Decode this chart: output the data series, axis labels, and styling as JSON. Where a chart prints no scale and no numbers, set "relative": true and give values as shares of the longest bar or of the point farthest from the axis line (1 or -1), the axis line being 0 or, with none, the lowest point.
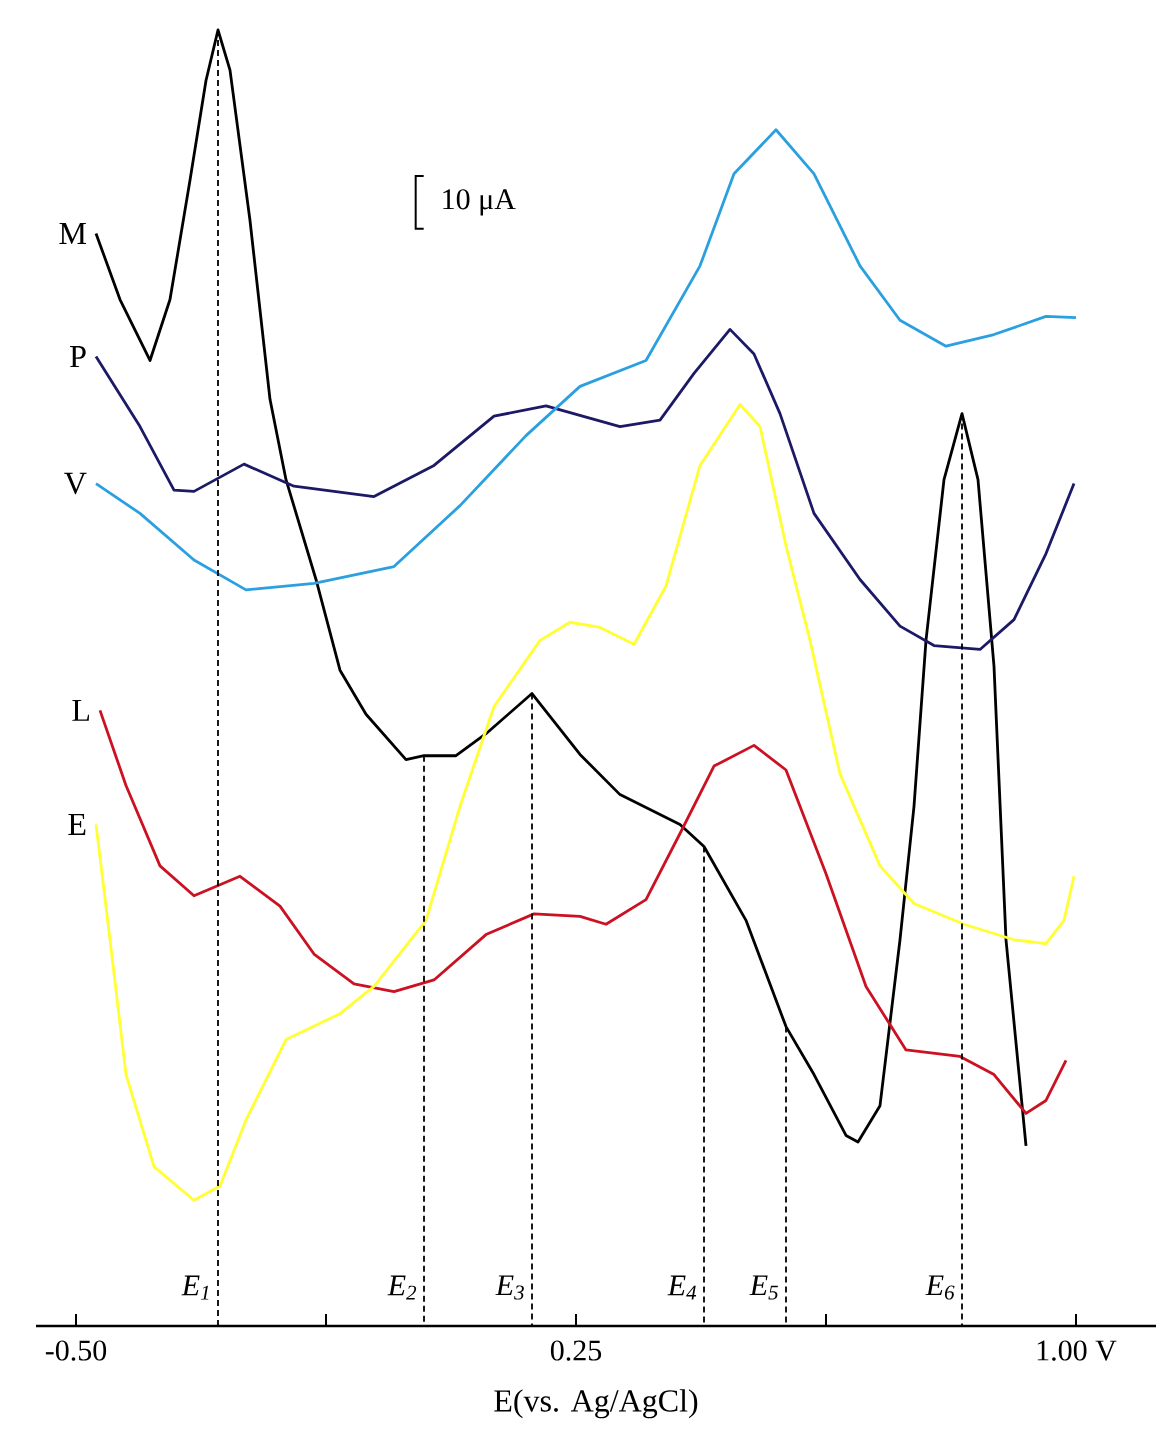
{
  "chart_data": {
    "type": "line",
    "relative": true,
    "xlabel": "E(vs. Ag/AgCl)",
    "xlim": [
      -0.56,
      1.12
    ],
    "xticks": [
      {
        "value": -0.5,
        "label": "-0.50"
      },
      {
        "value": -0.125,
        "label": null
      },
      {
        "value": 0.25,
        "label": "0.25"
      },
      {
        "value": 0.625,
        "label": null
      },
      {
        "value": 1.0,
        "label": "1.00 V"
      }
    ],
    "tick_labels": "x",
    "annotations": [
      "10 μA",
      {
        "text": "E$_{1}$",
        "x": -0.287,
        "y": 1.0
      },
      {
        "text": "E$_{2}$",
        "x": 0.022,
        "y": 0.44
      },
      {
        "text": "E$_{3}$",
        "x": 0.184,
        "y": 0.488
      },
      {
        "text": "E$_{4}$",
        "x": 0.442,
        "y": 0.37
      },
      {
        "text": "E$_{5}$",
        "x": 0.565,
        "y": 0.231
      },
      {
        "text": "E$_{6}$",
        "x": 0.829,
        "y": 0.704
      }
    ],
    "series": [
      {
        "name": "M",
        "color": "#000000",
        "x": [
          -0.47,
          -0.434,
          -0.389,
          -0.359,
          -0.329,
          -0.305,
          -0.287,
          -0.269,
          -0.239,
          -0.209,
          -0.185,
          -0.14,
          -0.104,
          -0.065,
          -0.005,
          0.022,
          0.07,
          0.115,
          0.184,
          0.256,
          0.316,
          0.406,
          0.442,
          0.505,
          0.565,
          0.607,
          0.655,
          0.673,
          0.706,
          0.736,
          0.757,
          0.775,
          0.802,
          0.829,
          0.853,
          0.877,
          0.895,
          0.925
        ],
        "values": [
          0.843,
          0.792,
          0.745,
          0.792,
          0.884,
          0.961,
          1.0,
          0.969,
          0.853,
          0.715,
          0.653,
          0.576,
          0.506,
          0.472,
          0.437,
          0.44,
          0.44,
          0.457,
          0.488,
          0.441,
          0.41,
          0.387,
          0.37,
          0.313,
          0.231,
          0.194,
          0.147,
          0.142,
          0.17,
          0.298,
          0.401,
          0.529,
          0.653,
          0.704,
          0.653,
          0.509,
          0.298,
          0.139
        ]
      },
      {
        "name": "P",
        "color": "#1c1a66",
        "x": [
          -0.47,
          -0.404,
          -0.353,
          -0.323,
          -0.248,
          -0.173,
          -0.053,
          0.037,
          0.127,
          0.205,
          0.316,
          0.376,
          0.427,
          0.481,
          0.517,
          0.556,
          0.607,
          0.676,
          0.736,
          0.787,
          0.856,
          0.907,
          0.955,
          0.997
        ],
        "values": [
          0.748,
          0.694,
          0.645,
          0.644,
          0.665,
          0.648,
          0.64,
          0.664,
          0.702,
          0.71,
          0.694,
          0.699,
          0.735,
          0.769,
          0.75,
          0.704,
          0.627,
          0.576,
          0.54,
          0.525,
          0.522,
          0.545,
          0.596,
          0.65
        ]
      },
      {
        "name": "V",
        "color": "#2aa0e0",
        "x": [
          -0.47,
          -0.404,
          -0.323,
          -0.245,
          -0.143,
          -0.023,
          0.076,
          0.175,
          0.256,
          0.355,
          0.436,
          0.487,
          0.55,
          0.607,
          0.676,
          0.736,
          0.805,
          0.877,
          0.955,
          1.0
        ],
        "values": [
          0.65,
          0.627,
          0.591,
          0.568,
          0.573,
          0.586,
          0.633,
          0.687,
          0.725,
          0.745,
          0.818,
          0.889,
          0.923,
          0.889,
          0.818,
          0.776,
          0.756,
          0.765,
          0.779,
          0.778
        ]
      },
      {
        "name": "L",
        "color": "#cc1122",
        "x": [
          -0.464,
          -0.425,
          -0.374,
          -0.323,
          -0.254,
          -0.194,
          -0.143,
          -0.083,
          -0.023,
          0.037,
          0.115,
          0.187,
          0.256,
          0.295,
          0.355,
          0.406,
          0.457,
          0.517,
          0.565,
          0.625,
          0.685,
          0.745,
          0.826,
          0.877,
          0.925,
          0.955,
          0.985
        ],
        "values": [
          0.475,
          0.417,
          0.355,
          0.332,
          0.347,
          0.324,
          0.287,
          0.264,
          0.258,
          0.267,
          0.302,
          0.318,
          0.316,
          0.31,
          0.329,
          0.38,
          0.432,
          0.448,
          0.429,
          0.349,
          0.262,
          0.213,
          0.208,
          0.194,
          0.164,
          0.174,
          0.205
        ]
      },
      {
        "name": "E",
        "color": "#ffff33",
        "x": [
          -0.47,
          -0.449,
          -0.425,
          -0.383,
          -0.323,
          -0.284,
          -0.245,
          -0.185,
          -0.104,
          -0.053,
          0.025,
          0.076,
          0.127,
          0.196,
          0.241,
          0.286,
          0.337,
          0.385,
          0.436,
          0.496,
          0.526,
          0.565,
          0.601,
          0.646,
          0.706,
          0.757,
          0.832,
          0.907,
          0.955,
          0.982,
          0.997
        ],
        "values": [
          0.387,
          0.298,
          0.194,
          0.123,
          0.097,
          0.108,
          0.159,
          0.221,
          0.241,
          0.262,
          0.313,
          0.401,
          0.478,
          0.529,
          0.543,
          0.539,
          0.526,
          0.571,
          0.664,
          0.711,
          0.694,
          0.602,
          0.529,
          0.426,
          0.355,
          0.326,
          0.31,
          0.298,
          0.295,
          0.313,
          0.347
        ]
      }
    ]
  }
}
